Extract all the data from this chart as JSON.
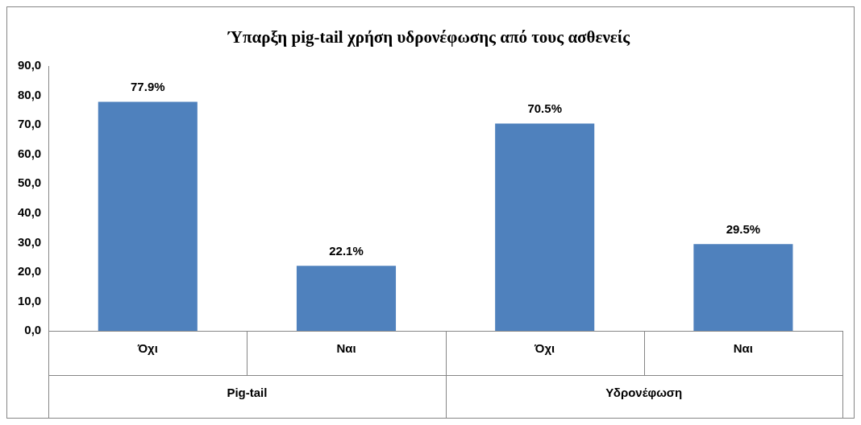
{
  "chart_data": {
    "type": "bar",
    "title": "Ύπαρξη pig-tail χρήση υδρονέφωσης από τους ασθενείς",
    "categories": [
      "Όχι",
      "Ναι",
      "Όχι",
      "Ναι"
    ],
    "values": [
      77.9,
      22.1,
      70.5,
      29.5
    ],
    "value_labels": [
      "77.9%",
      "22.1%",
      "70.5%",
      "29.5%"
    ],
    "color": "#4f81bd",
    "ylim": [
      0,
      90
    ],
    "yticks": [
      {
        "value": 0,
        "label": "0,0"
      },
      {
        "value": 10,
        "label": "10,0"
      },
      {
        "value": 20,
        "label": "20,0"
      },
      {
        "value": 30,
        "label": "30,0"
      },
      {
        "value": 40,
        "label": "40,0"
      },
      {
        "value": 50,
        "label": "50,0"
      },
      {
        "value": 60,
        "label": "60,0"
      },
      {
        "value": 70,
        "label": "70,0"
      },
      {
        "value": 80,
        "label": "80,0"
      },
      {
        "value": 90,
        "label": "90,0"
      }
    ],
    "grid": false,
    "legend": false,
    "annotations": [
      "Pig-tail",
      "Υδρονέφωση"
    ]
  }
}
